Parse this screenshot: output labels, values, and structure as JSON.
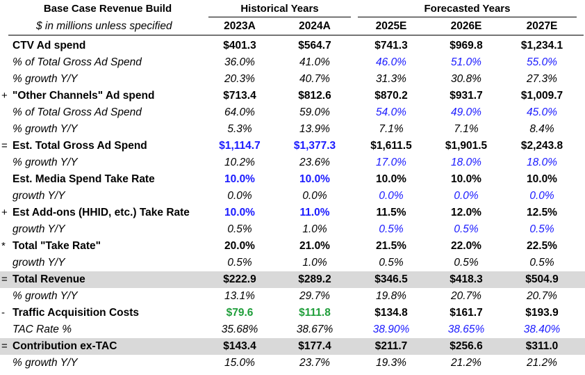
{
  "header": {
    "title": "Base Case Revenue Build",
    "historical": "Historical Years",
    "forecast": "Forecasted Years",
    "subtitle": "$ in millions unless specified",
    "years": [
      "2023A",
      "2024A",
      "2025E",
      "2026E",
      "2027E"
    ]
  },
  "rows": [
    {
      "sym": "",
      "label": "CTV Ad spend",
      "style": "b",
      "values": [
        "$401.3",
        "$564.7",
        "$741.3",
        "$969.8",
        "$1,234.1"
      ],
      "colors": [
        "",
        "",
        "",
        "",
        ""
      ]
    },
    {
      "sym": "",
      "label": "% of Total Gross Ad Spend",
      "style": "i",
      "values": [
        "36.0%",
        "41.0%",
        "46.0%",
        "51.0%",
        "55.0%"
      ],
      "colors": [
        "",
        "",
        "blue",
        "blue",
        "blue"
      ]
    },
    {
      "sym": "",
      "label": "% growth Y/Y",
      "style": "i",
      "values": [
        "20.3%",
        "40.7%",
        "31.3%",
        "30.8%",
        "27.3%"
      ],
      "colors": [
        "",
        "",
        "",
        "",
        ""
      ]
    },
    {
      "sym": "+",
      "label": "\"Other Channels\" Ad spend",
      "style": "b",
      "values": [
        "$713.4",
        "$812.6",
        "$870.2",
        "$931.7",
        "$1,009.7"
      ],
      "colors": [
        "",
        "",
        "",
        "",
        ""
      ]
    },
    {
      "sym": "",
      "label": "% of Total Gross Ad Spend",
      "style": "i",
      "values": [
        "64.0%",
        "59.0%",
        "54.0%",
        "49.0%",
        "45.0%"
      ],
      "colors": [
        "",
        "",
        "blue",
        "blue",
        "blue"
      ]
    },
    {
      "sym": "",
      "label": "% growth Y/Y",
      "style": "i",
      "values": [
        "5.3%",
        "13.9%",
        "7.1%",
        "7.1%",
        "8.4%"
      ],
      "colors": [
        "",
        "",
        "",
        "",
        ""
      ]
    },
    {
      "sym": "=",
      "label": "Est. Total Gross Ad Spend",
      "style": "b",
      "values": [
        "$1,114.7",
        "$1,377.3",
        "$1,611.5",
        "$1,901.5",
        "$2,243.8"
      ],
      "colors": [
        "blue",
        "blue",
        "",
        "",
        ""
      ]
    },
    {
      "sym": "",
      "label": "% growth Y/Y",
      "style": "i",
      "values": [
        "10.2%",
        "23.6%",
        "17.0%",
        "18.0%",
        "18.0%"
      ],
      "colors": [
        "",
        "",
        "blue",
        "blue",
        "blue"
      ]
    },
    {
      "sym": "",
      "label": "Est. Media Spend Take Rate",
      "style": "b",
      "values": [
        "10.0%",
        "10.0%",
        "10.0%",
        "10.0%",
        "10.0%"
      ],
      "colors": [
        "blue",
        "blue",
        "",
        "",
        ""
      ]
    },
    {
      "sym": "",
      "label": "growth Y/Y",
      "style": "i",
      "values": [
        "0.0%",
        "0.0%",
        "0.0%",
        "0.0%",
        "0.0%"
      ],
      "colors": [
        "",
        "",
        "blue",
        "blue",
        "blue"
      ]
    },
    {
      "sym": "+",
      "label": "Est Add-ons (HHID, etc.) Take Rate",
      "style": "b",
      "values": [
        "10.0%",
        "11.0%",
        "11.5%",
        "12.0%",
        "12.5%"
      ],
      "colors": [
        "blue",
        "blue",
        "",
        "",
        ""
      ]
    },
    {
      "sym": "",
      "label": "growth Y/Y",
      "style": "i",
      "values": [
        "0.5%",
        "1.0%",
        "0.5%",
        "0.5%",
        "0.5%"
      ],
      "colors": [
        "",
        "",
        "blue",
        "blue",
        "blue"
      ]
    },
    {
      "sym": "*",
      "label": "Total \"Take Rate\"",
      "style": "b",
      "values": [
        "20.0%",
        "21.0%",
        "21.5%",
        "22.0%",
        "22.5%"
      ],
      "colors": [
        "",
        "",
        "",
        "",
        ""
      ]
    },
    {
      "sym": "",
      "label": "growth Y/Y",
      "style": "i",
      "values": [
        "0.5%",
        "1.0%",
        "0.5%",
        "0.5%",
        "0.5%"
      ],
      "colors": [
        "",
        "",
        "",
        "",
        ""
      ]
    },
    {
      "sym": "=",
      "label": "Total Revenue",
      "style": "b",
      "shade": true,
      "values": [
        "$222.9",
        "$289.2",
        "$346.5",
        "$418.3",
        "$504.9"
      ],
      "colors": [
        "",
        "",
        "",
        "",
        ""
      ]
    },
    {
      "sym": "",
      "label": "% growth Y/Y",
      "style": "i",
      "values": [
        "13.1%",
        "29.7%",
        "19.8%",
        "20.7%",
        "20.7%"
      ],
      "colors": [
        "",
        "",
        "",
        "",
        ""
      ]
    },
    {
      "sym": "-",
      "label": "Traffic Acquisition Costs",
      "style": "b",
      "values": [
        "$79.6",
        "$111.8",
        "$134.8",
        "$161.7",
        "$193.9"
      ],
      "colors": [
        "green",
        "green",
        "",
        "",
        ""
      ]
    },
    {
      "sym": "",
      "label": "TAC Rate %",
      "style": "i",
      "values": [
        "35.68%",
        "38.67%",
        "38.90%",
        "38.65%",
        "38.40%"
      ],
      "colors": [
        "",
        "",
        "blue",
        "blue",
        "blue"
      ]
    },
    {
      "sym": "=",
      "label": "Contribution ex-TAC",
      "style": "b",
      "shade": true,
      "values": [
        "$143.4",
        "$177.4",
        "$211.7",
        "$256.6",
        "$311.0"
      ],
      "colors": [
        "",
        "",
        "",
        "",
        ""
      ]
    },
    {
      "sym": "",
      "label": "% growth Y/Y",
      "style": "i",
      "values": [
        "15.0%",
        "23.7%",
        "19.3%",
        "21.2%",
        "21.2%"
      ],
      "colors": [
        "",
        "",
        "",
        "",
        ""
      ]
    }
  ]
}
